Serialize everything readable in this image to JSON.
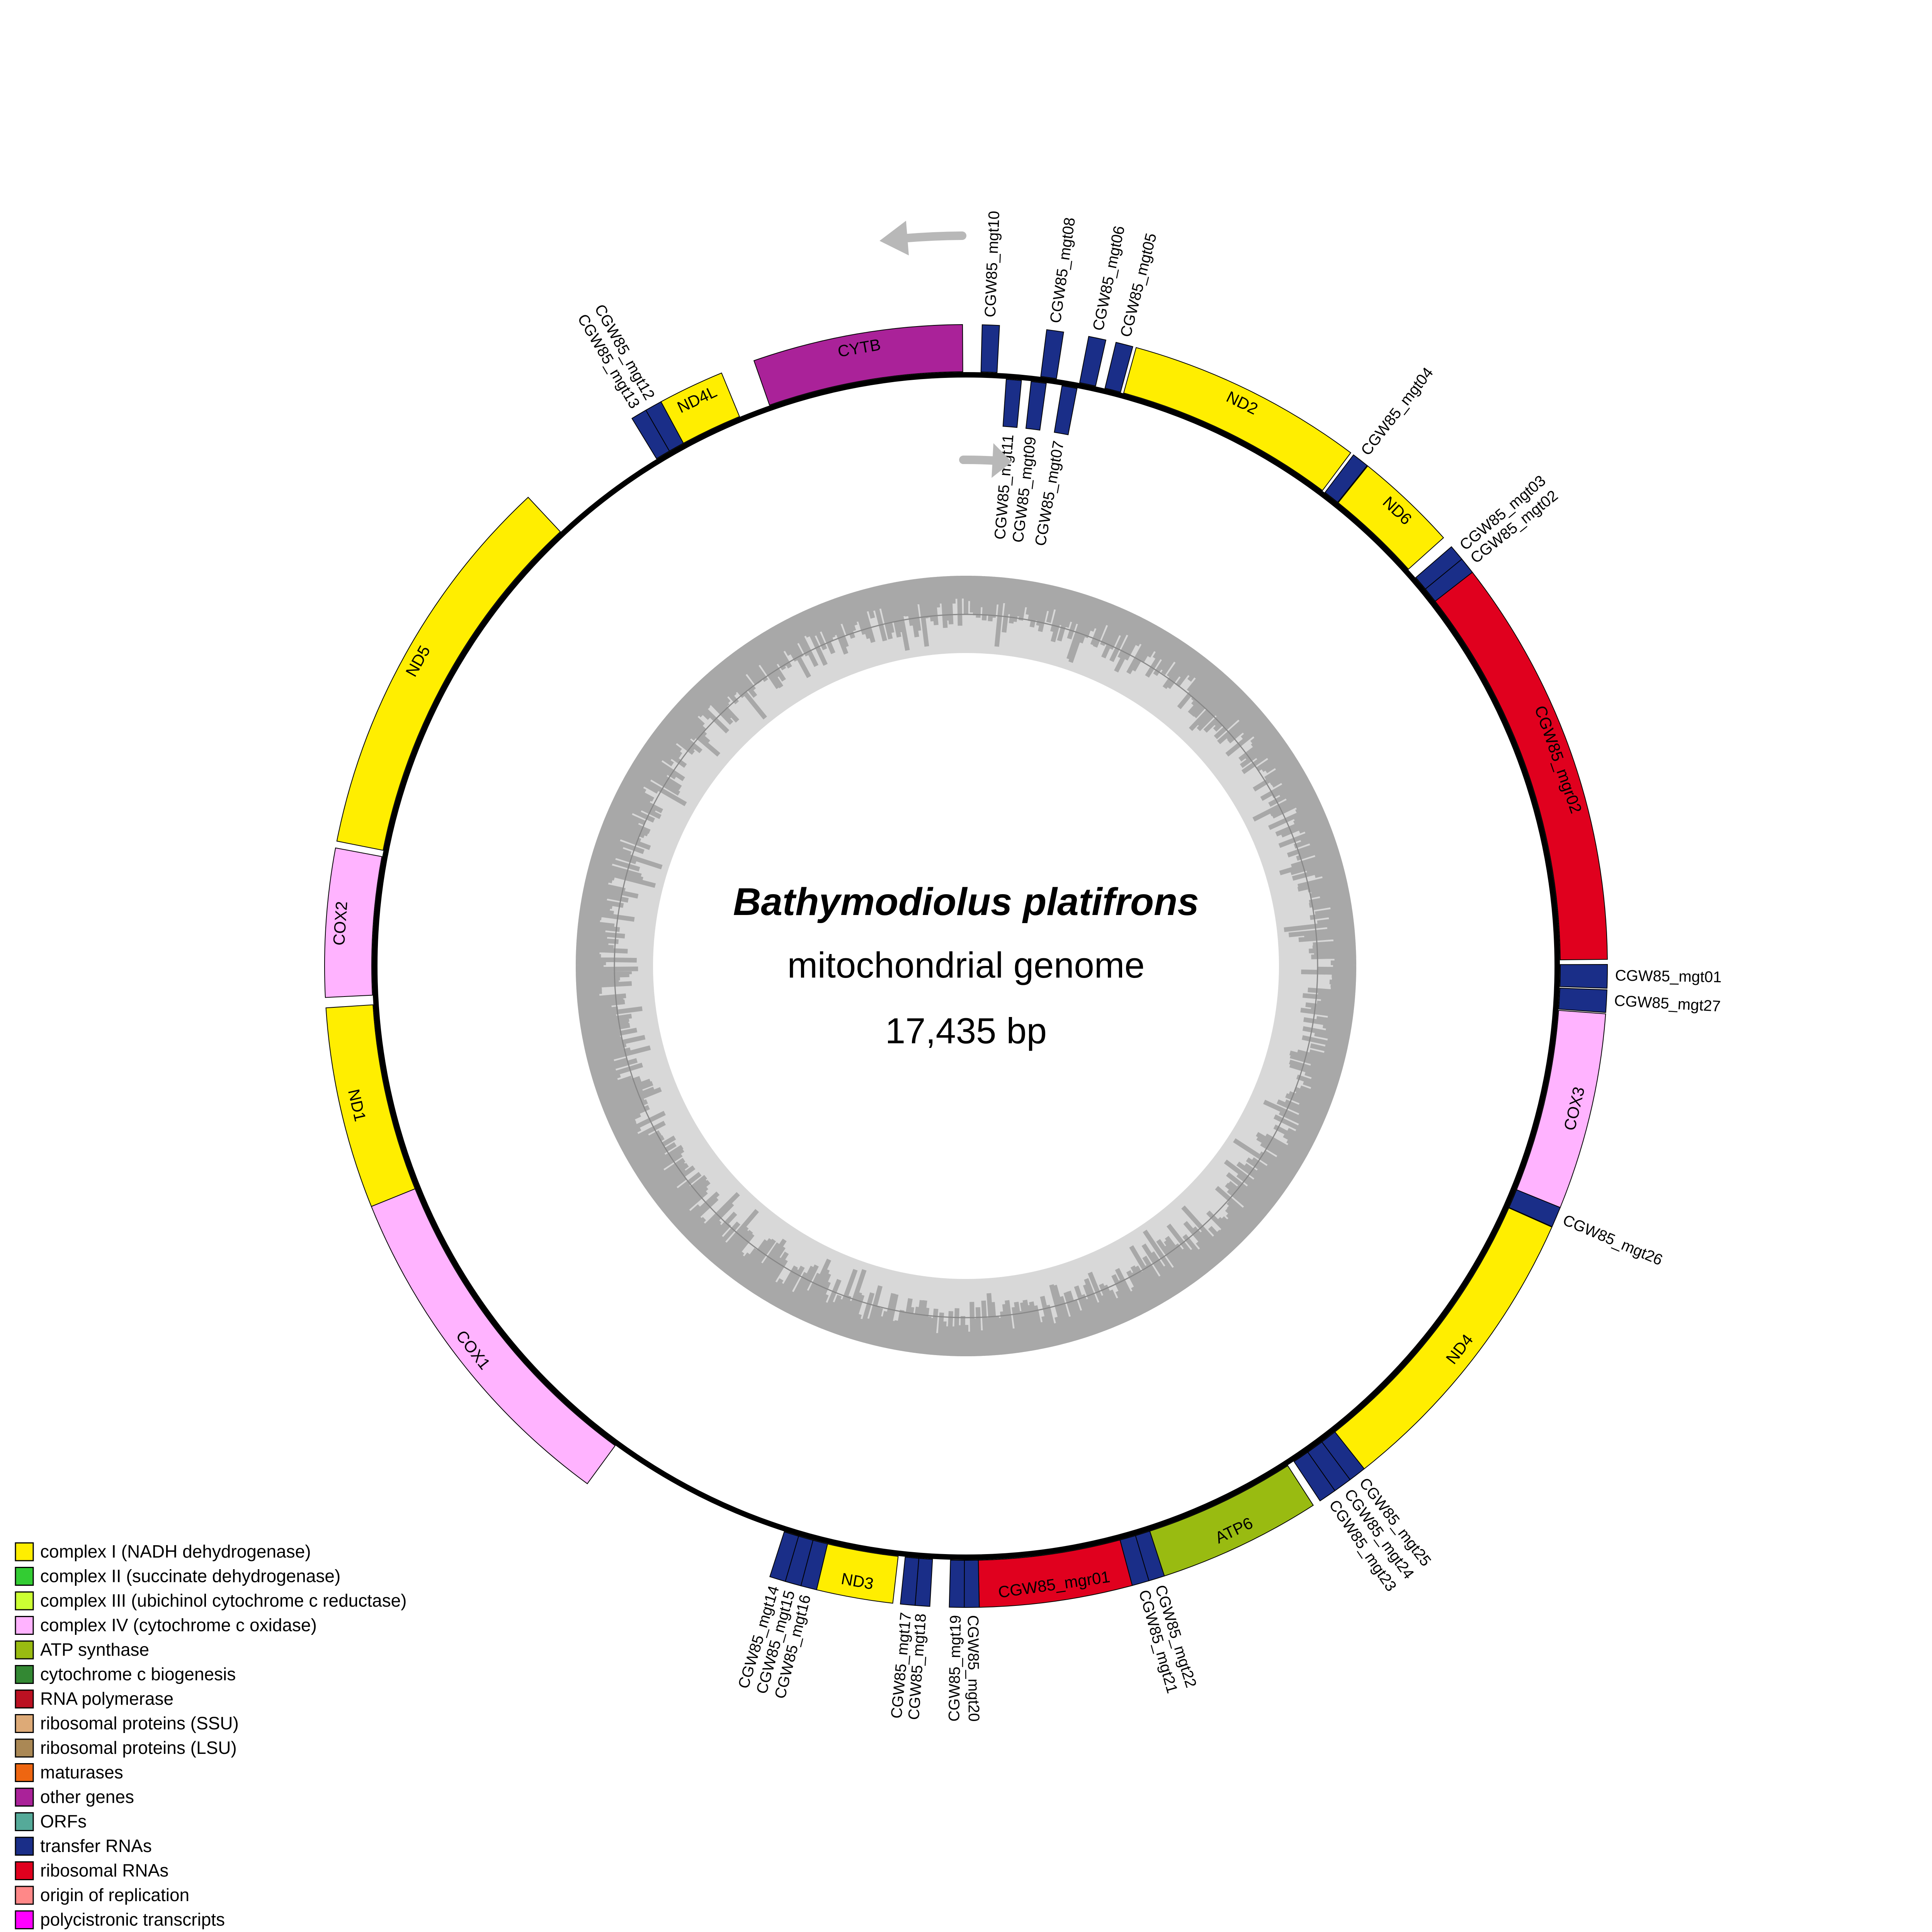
{
  "title": {
    "species": "Bathymodiolus platifrons",
    "subtitle": "mitochondrial genome",
    "size": "17,435 bp"
  },
  "genome_length_bp": 17435,
  "colors": {
    "complex_I": "#ffee00",
    "complex_II": "#33cc33",
    "complex_III": "#ccff33",
    "complex_IV": "#ffb3ff",
    "atp": "#99bb11",
    "cyt_c": "#338833",
    "rna_pol": "#bb1122",
    "rp_ssu": "#ddaa77",
    "rp_lsu": "#aa8855",
    "maturases": "#ee6611",
    "other": "#aa2299",
    "orfs": "#55aa99",
    "trna": "#1a2e88",
    "rrna": "#e0001e",
    "ori": "#ff8888",
    "poly": "#ff00ff",
    "backbone": "#000000",
    "gc_outer": "#a8a8a8",
    "gc_inner": "#d8d8d8",
    "arrow": "#b8b8b8"
  },
  "features": [
    {
      "label": "CGW85_mgt01",
      "type": "trna",
      "strand": "outer",
      "start": 4352,
      "end": 4455
    },
    {
      "label": "CGW85_mgt27",
      "type": "trna",
      "strand": "outer",
      "start": 4462,
      "end": 4560
    },
    {
      "label": "COX3",
      "type": "complex_IV",
      "strand": "outer",
      "start": 4566,
      "end": 5430
    },
    {
      "label": "CGW85_mgt26",
      "type": "trna",
      "strand": "outer",
      "start": 5430,
      "end": 5520
    },
    {
      "label": "ND4",
      "type": "complex_I",
      "strand": "outer",
      "start": 5522,
      "end": 6859
    },
    {
      "label": "CGW85_mgt25",
      "type": "trna",
      "strand": "outer",
      "start": 6859,
      "end": 6936
    },
    {
      "label": "CGW85_mgt24",
      "type": "trna",
      "strand": "outer",
      "start": 6936,
      "end": 7017
    },
    {
      "label": "CGW85_mgt23",
      "type": "trna",
      "strand": "outer",
      "start": 7017,
      "end": 7095
    },
    {
      "label": "ATP6",
      "type": "atp",
      "strand": "outer",
      "start": 7130,
      "end": 7845
    },
    {
      "label": "CGW85_mgt22",
      "type": "trna",
      "strand": "outer",
      "start": 7845,
      "end": 7915
    },
    {
      "label": "CGW85_mgt21",
      "type": "trna",
      "strand": "outer",
      "start": 7915,
      "end": 7990
    },
    {
      "label": "CGW85_mgr01",
      "type": "rrna",
      "strand": "outer",
      "start": 7990,
      "end": 8660
    },
    {
      "label": "CGW85_mgt20",
      "type": "trna",
      "strand": "outer",
      "start": 8660,
      "end": 8725
    },
    {
      "label": "CGW85_mgt19",
      "type": "trna",
      "strand": "outer",
      "start": 8725,
      "end": 8790
    },
    {
      "label": "CGW85_mgt18",
      "type": "trna",
      "strand": "outer",
      "start": 8874,
      "end": 8938
    },
    {
      "label": "CGW85_mgt17",
      "type": "trna",
      "strand": "outer",
      "start": 8938,
      "end": 9002
    },
    {
      "label": "ND3",
      "type": "complex_I",
      "strand": "outer",
      "start": 9035,
      "end": 9370
    },
    {
      "label": "CGW85_mgt16",
      "type": "trna",
      "strand": "outer",
      "start": 9370,
      "end": 9440
    },
    {
      "label": "CGW85_mgt15",
      "type": "trna",
      "strand": "outer",
      "start": 9440,
      "end": 9510
    },
    {
      "label": "CGW85_mgt14",
      "type": "trna",
      "strand": "outer",
      "start": 9510,
      "end": 9580
    },
    {
      "label": "COX1",
      "type": "complex_IV",
      "strand": "outer",
      "start": 10470,
      "end": 12010
    },
    {
      "label": "ND1",
      "type": "complex_I",
      "strand": "outer",
      "start": 12010,
      "end": 12895
    },
    {
      "label": "COX2",
      "type": "complex_IV",
      "strand": "outer",
      "start": 12940,
      "end": 13590
    },
    {
      "label": "ND5",
      "type": "complex_I",
      "strand": "outer",
      "start": 13620,
      "end": 15350
    },
    {
      "label": "CGW85_mgt13",
      "type": "trna",
      "strand": "outer",
      "start": 15915,
      "end": 15985
    },
    {
      "label": "CGW85_mgt12",
      "type": "trna",
      "strand": "outer",
      "start": 15985,
      "end": 16060
    },
    {
      "label": "ND4L",
      "type": "complex_I",
      "strand": "outer",
      "start": 16060,
      "end": 16350
    },
    {
      "label": "CYTB",
      "type": "other",
      "strand": "outer",
      "start": 16500,
      "end": 17420
    },
    {
      "label": "CGW85_mgt10",
      "type": "trna",
      "strand": "outer",
      "start": 70,
      "end": 145
    },
    {
      "label": "CGW85_mgt11",
      "type": "trna",
      "strand": "inner",
      "start": 190,
      "end": 262
    },
    {
      "label": "CGW85_mgt09",
      "type": "trna",
      "strand": "inner",
      "start": 308,
      "end": 380
    },
    {
      "label": "CGW85_mgt08",
      "type": "trna",
      "strand": "outer",
      "start": 350,
      "end": 424
    },
    {
      "label": "CGW85_mgt07",
      "type": "trna",
      "strand": "inner",
      "start": 455,
      "end": 527
    },
    {
      "label": "CGW85_mgt06",
      "type": "trna",
      "strand": "outer",
      "start": 534,
      "end": 610
    },
    {
      "label": "CGW85_mgt05",
      "type": "trna",
      "strand": "outer",
      "start": 655,
      "end": 730
    },
    {
      "label": "ND2",
      "type": "complex_I",
      "strand": "outer",
      "start": 745,
      "end": 1785
    },
    {
      "label": "CGW85_mgt04",
      "type": "trna",
      "strand": "outer",
      "start": 1800,
      "end": 1875
    },
    {
      "label": "ND6",
      "type": "complex_I",
      "strand": "outer",
      "start": 1878,
      "end": 2330
    },
    {
      "label": "CGW85_mgt03",
      "type": "trna",
      "strand": "outer",
      "start": 2382,
      "end": 2452
    },
    {
      "label": "CGW85_mgt02",
      "type": "trna",
      "strand": "outer",
      "start": 2452,
      "end": 2525
    },
    {
      "label": "CGW85_mgr02",
      "type": "rrna",
      "strand": "outer",
      "start": 2525,
      "end": 4330
    }
  ],
  "legend": [
    {
      "label": "complex I (NADH dehydrogenase)",
      "color": "#ffee00"
    },
    {
      "label": "complex II (succinate dehydrogenase)",
      "color": "#33cc33"
    },
    {
      "label": "complex III (ubichinol cytochrome c reductase)",
      "color": "#ccff33"
    },
    {
      "label": "complex IV (cytochrome c oxidase)",
      "color": "#ffb3ff"
    },
    {
      "label": "ATP synthase",
      "color": "#99bb11"
    },
    {
      "label": "cytochrome c biogenesis",
      "color": "#338833"
    },
    {
      "label": "RNA polymerase",
      "color": "#bb1122"
    },
    {
      "label": "ribosomal proteins (SSU)",
      "color": "#ddaa77"
    },
    {
      "label": "ribosomal proteins (LSU)",
      "color": "#aa8855"
    },
    {
      "label": "maturases",
      "color": "#ee6611"
    },
    {
      "label": "other genes",
      "color": "#aa2299"
    },
    {
      "label": "ORFs",
      "color": "#55aa99"
    },
    {
      "label": "transfer RNAs",
      "color": "#1a2e88"
    },
    {
      "label": "ribosomal RNAs",
      "color": "#e0001e"
    },
    {
      "label": "origin of replication",
      "color": "#ff8888"
    },
    {
      "label": "polycistronic transcripts",
      "color": "#ff00ff"
    }
  ]
}
